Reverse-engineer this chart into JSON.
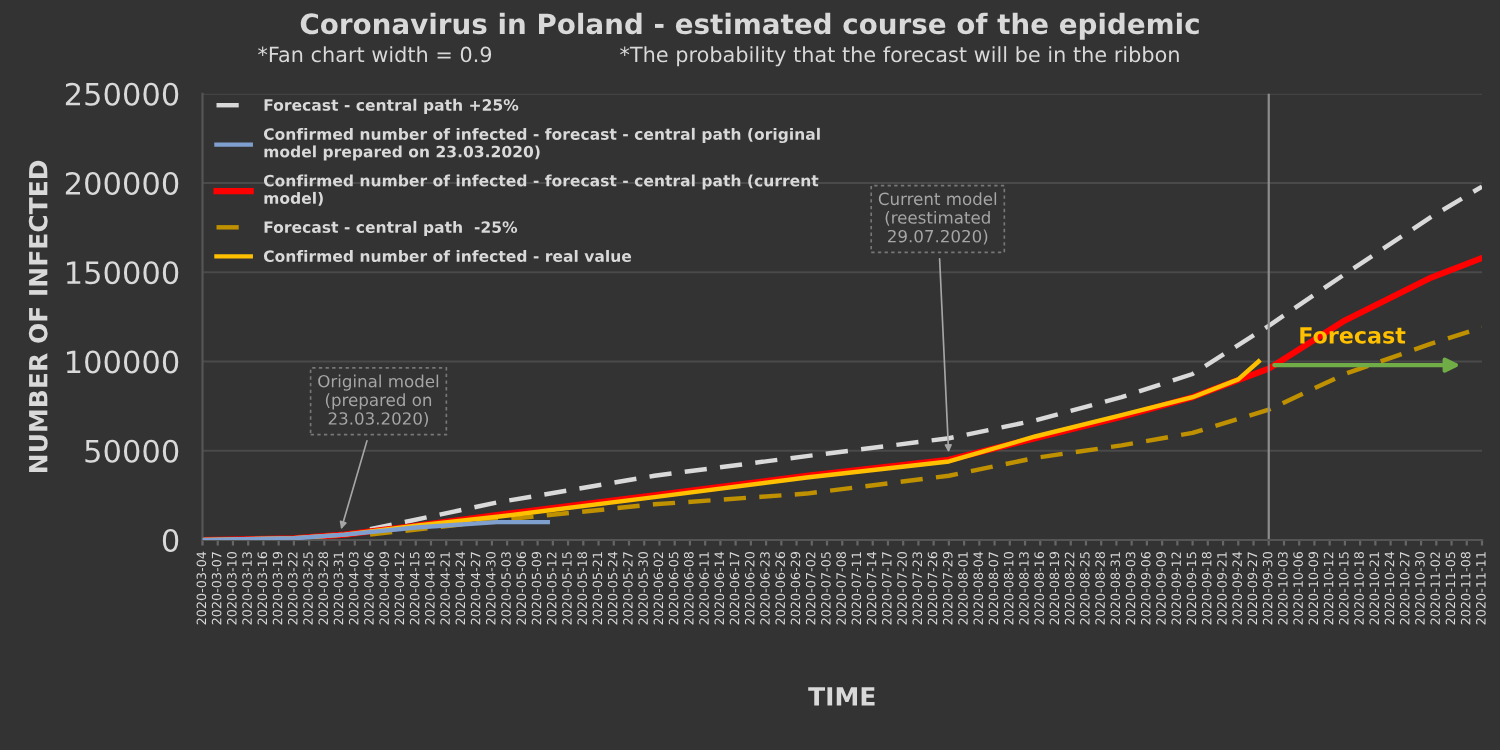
{
  "chart_data": {
    "type": "line",
    "title": "Coronavirus in Poland - estimated course of the epidemic",
    "subtitle": "*Fan chart width = 0.9",
    "xlabel": "TIME",
    "ylabel": "NUMBER OF INFECTED",
    "series": [
      {
        "name": "Forecast - central path +25%",
        "color": "#d9d9d9",
        "line_style": "dashed",
        "x": [
          "2020-04-06",
          "2020-05-01",
          "2020-06-01",
          "2020-07-01",
          "2020-07-29",
          "2020-08-15",
          "2020-09-01",
          "2020-09-15",
          "2020-09-30",
          "2020-10-15",
          "2020-11-01",
          "2020-11-11"
        ],
        "values": [
          6000,
          21000,
          36000,
          47000,
          57000,
          67000,
          80000,
          93000,
          120000,
          149000,
          181000,
          198000
        ]
      },
      {
        "name": "Confirmed number of infected - forecast - central path (original\nmodel prepared on 23.03.2020)",
        "color": "#7f9fcf",
        "line_style": "solid",
        "x": [
          "2020-03-04",
          "2020-03-22",
          "2020-04-01",
          "2020-04-15",
          "2020-05-01",
          "2020-05-11"
        ],
        "values": [
          0,
          1000,
          3000,
          7000,
          10000,
          10000
        ]
      },
      {
        "name": "Confirmed number of infected - forecast - central path (current\nmodel)",
        "color": "#ff0000",
        "line_style": "solid",
        "x": [
          "2020-03-04",
          "2020-03-22",
          "2020-04-01",
          "2020-04-15",
          "2020-05-01",
          "2020-06-01",
          "2020-07-01",
          "2020-07-29",
          "2020-08-15",
          "2020-09-01",
          "2020-09-15",
          "2020-09-30",
          "2020-10-15",
          "2020-11-01",
          "2020-11-11"
        ],
        "values": [
          0,
          1000,
          3000,
          8000,
          14000,
          25000,
          36000,
          45000,
          57000,
          69000,
          80000,
          96000,
          123000,
          147000,
          158000
        ]
      },
      {
        "name": "Forecast - central path  -25%",
        "color": "#bf9000",
        "line_style": "dashed",
        "x": [
          "2020-04-06",
          "2020-05-01",
          "2020-06-01",
          "2020-07-01",
          "2020-07-29",
          "2020-08-15",
          "2020-09-01",
          "2020-09-15",
          "2020-09-30",
          "2020-10-15",
          "2020-11-01",
          "2020-11-11"
        ],
        "values": [
          3000,
          11000,
          20000,
          26000,
          36000,
          46000,
          53000,
          60000,
          73000,
          93000,
          110000,
          119000
        ]
      },
      {
        "name": "Confirmed number of infected - real value",
        "color": "#ffc000",
        "line_style": "solid",
        "x": [
          "2020-03-04",
          "2020-03-22",
          "2020-04-01",
          "2020-04-15",
          "2020-05-01",
          "2020-06-01",
          "2020-07-01",
          "2020-07-29",
          "2020-08-15",
          "2020-09-01",
          "2020-09-15",
          "2020-09-24",
          "2020-09-28"
        ],
        "values": [
          0,
          1000,
          3000,
          8000,
          13000,
          24000,
          35000,
          44000,
          58000,
          70000,
          80000,
          90000,
          100000
        ]
      }
    ],
    "xlim": [
      "2020-03-04",
      "2020-11-11"
    ],
    "xticks": [
      "2020-03-04",
      "2020-03-07",
      "2020-03-10",
      "2020-03-13",
      "2020-03-16",
      "2020-03-19",
      "2020-03-22",
      "2020-03-25",
      "2020-03-28",
      "2020-03-31",
      "2020-04-03",
      "2020-04-06",
      "2020-04-09",
      "2020-04-12",
      "2020-04-15",
      "2020-04-18",
      "2020-04-21",
      "2020-04-24",
      "2020-04-27",
      "2020-04-30",
      "2020-05-03",
      "2020-05-06",
      "2020-05-09",
      "2020-05-12",
      "2020-05-15",
      "2020-05-18",
      "2020-05-21",
      "2020-05-24",
      "2020-05-27",
      "2020-05-30",
      "2020-06-02",
      "2020-06-05",
      "2020-06-08",
      "2020-06-11",
      "2020-06-14",
      "2020-06-17",
      "2020-06-20",
      "2020-06-23",
      "2020-06-26",
      "2020-06-29",
      "2020-07-02",
      "2020-07-05",
      "2020-07-08",
      "2020-07-11",
      "2020-07-14",
      "2020-07-17",
      "2020-07-20",
      "2020-07-23",
      "2020-07-26",
      "2020-07-29",
      "2020-08-01",
      "2020-08-04",
      "2020-08-07",
      "2020-08-10",
      "2020-08-13",
      "2020-08-16",
      "2020-08-19",
      "2020-08-22",
      "2020-08-25",
      "2020-08-28",
      "2020-08-31",
      "2020-09-03",
      "2020-09-06",
      "2020-09-09",
      "2020-09-12",
      "2020-09-15",
      "2020-09-18",
      "2020-09-21",
      "2020-09-24",
      "2020-09-27",
      "2020-09-30",
      "2020-10-03",
      "2020-10-06",
      "2020-10-09",
      "2020-10-12",
      "2020-10-15",
      "2020-10-18",
      "2020-10-21",
      "2020-10-24",
      "2020-10-27",
      "2020-10-30",
      "2020-11-02",
      "2020-11-05",
      "2020-11-08",
      "2020-11-11"
    ],
    "ylim": [
      0,
      250000
    ],
    "yticks": [
      0,
      50000,
      100000,
      150000,
      200000,
      250000
    ],
    "grid": "y",
    "legend": "top left",
    "ref_lines": [
      {
        "axis": "x",
        "value": "2020-09-30",
        "color": "#8c8c8c"
      }
    ],
    "annotations": [
      "*The probability that the forecast will be in the ribbon",
      {
        "text": "Original model\n(prepared on\n23.03.2020)",
        "x": "2020-03-31",
        "y": 3000
      },
      {
        "text": "Current model\n(reestimated\n29.07.2020)",
        "x": "2020-07-29",
        "y": 46000
      },
      {
        "text": "Forecast",
        "x": "2020-09-30",
        "y": 98000
      }
    ]
  }
}
